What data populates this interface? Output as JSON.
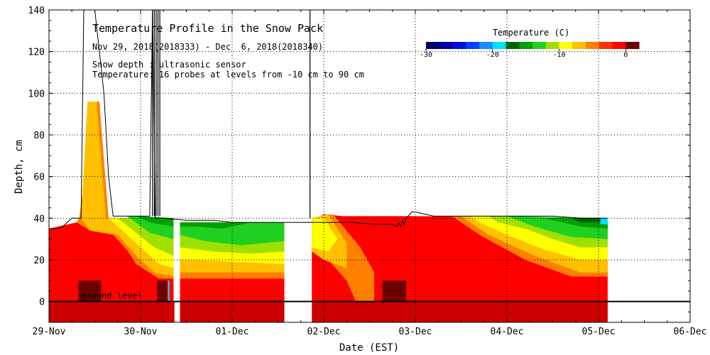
{
  "chart_data": {
    "type": "heatmap",
    "title": "Temperature Profile in the Snow Pack",
    "subtitle": "Nov 29, 2018(2018333) - Dec  6, 2018(2018340)",
    "notes": [
      "Snow depth : ultrasonic sensor",
      "Temperature: 16 probes at levels from -10 cm to 90 cm"
    ],
    "xlabel": "Date (EST)",
    "ylabel": "Depth, cm",
    "xlim": [
      0,
      7
    ],
    "ylim": [
      -10,
      140
    ],
    "grid": true,
    "x_ticks": [
      {
        "value": 0,
        "label": "29-Nov"
      },
      {
        "value": 1,
        "label": "30-Nov"
      },
      {
        "value": 2,
        "label": "01-Dec"
      },
      {
        "value": 3,
        "label": "02-Dec"
      },
      {
        "value": 4,
        "label": "03-Dec"
      },
      {
        "value": 5,
        "label": "04-Dec"
      },
      {
        "value": 6,
        "label": "05-Dec"
      },
      {
        "value": 7,
        "label": "06-Dec"
      }
    ],
    "y_ticks": [
      0,
      20,
      40,
      60,
      80,
      100,
      120,
      140
    ],
    "ground_level": {
      "depth": 0,
      "label": "ground level"
    },
    "colorbar": {
      "label": "Temperature (C)",
      "range": [
        -30,
        2
      ],
      "tick_values": [
        -30,
        -20,
        -10,
        0
      ],
      "tick_labels": [
        "-30",
        "-20",
        "-10",
        "0"
      ],
      "colors": [
        "#000066",
        "#0000a0",
        "#0010d8",
        "#0040ff",
        "#1a8cff",
        "#00e0ff",
        "#006400",
        "#00a000",
        "#20d020",
        "#a0e000",
        "#ffff00",
        "#ffc000",
        "#ff8000",
        "#ff3000",
        "#ff0000",
        "#6a0000"
      ]
    },
    "snow_depth_series": {
      "name": "Snow depth (cm)",
      "x": [
        0,
        0.1,
        0.15,
        0.2,
        0.25,
        0.3,
        0.33,
        0.35,
        0.38,
        0.4,
        0.42,
        0.45,
        0.5,
        0.55,
        0.6,
        0.65,
        0.7,
        0.8,
        1.0,
        1.1,
        1.13,
        1.16,
        1.2,
        1.25,
        1.5,
        1.8,
        2.0,
        2.2,
        2.5,
        2.8,
        3.0,
        3.3,
        3.6,
        3.75,
        3.8,
        3.82,
        3.84,
        3.86,
        3.88,
        3.9,
        3.92,
        3.94,
        3.96,
        4.0,
        4.1,
        4.2,
        4.5,
        5.0,
        5.5,
        5.8,
        6.0,
        6.1
      ],
      "y": [
        35,
        35,
        36,
        38,
        40,
        40,
        40,
        40,
        140,
        140,
        140,
        140,
        140,
        120,
        100,
        60,
        41,
        41,
        41,
        41,
        140,
        40,
        40,
        40,
        39,
        39,
        38,
        38,
        38,
        38,
        38,
        38,
        37,
        37,
        36,
        38,
        36,
        39,
        37,
        40,
        41,
        42,
        43,
        43,
        42,
        41,
        41,
        41,
        41,
        40,
        40,
        40
      ]
    }
  }
}
